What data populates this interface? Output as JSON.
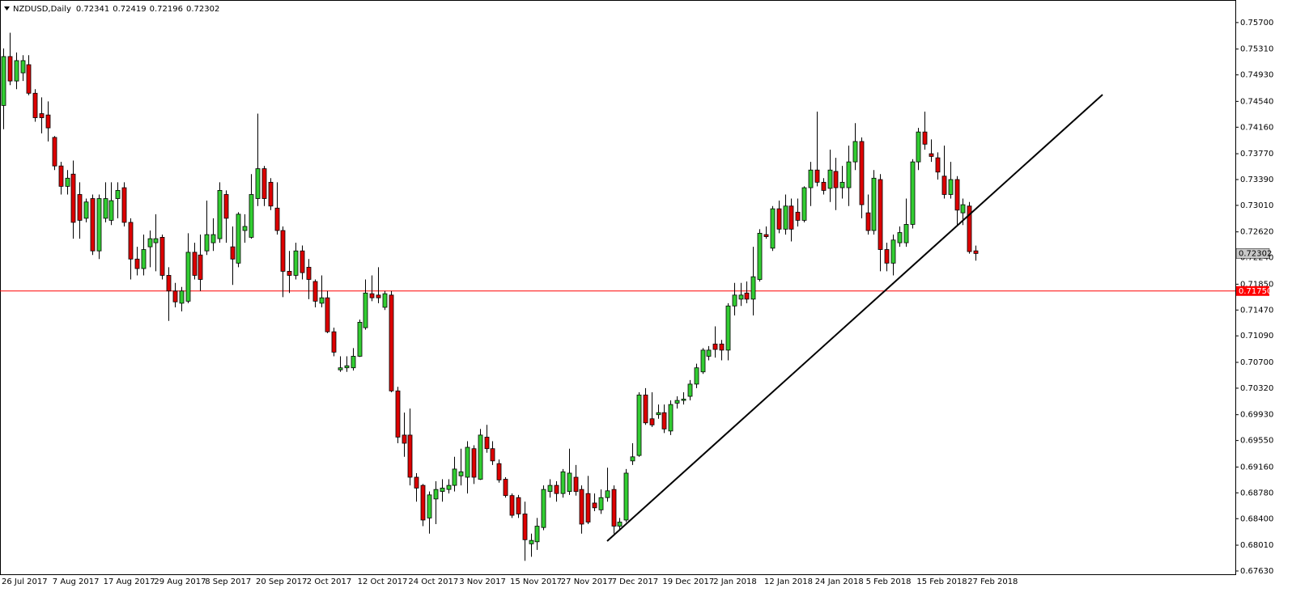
{
  "chart_data": {
    "type": "candlestick",
    "title": "NZDUSD,Daily",
    "up_color": "#32cd32",
    "down_color": "#dd0000",
    "categories": [
      "26 Jul 2017",
      null,
      null,
      null,
      null,
      null,
      null,
      null,
      "7 Aug 2017",
      null,
      null,
      null,
      null,
      null,
      null,
      null,
      "17 Aug 2017",
      null,
      null,
      null,
      null,
      null,
      null,
      null,
      "29 Aug 2017",
      null,
      null,
      null,
      null,
      null,
      null,
      null,
      "8 Sep 2017",
      null,
      null,
      null,
      null,
      null,
      null,
      null,
      "20 Sep 2017",
      null,
      null,
      null,
      null,
      null,
      null,
      null,
      "2 Oct 2017",
      null,
      null,
      null,
      null,
      null,
      null,
      null,
      "12 Oct 2017",
      null,
      null,
      null,
      null,
      null,
      null,
      null,
      "24 Oct 2017",
      null,
      null,
      null,
      null,
      null,
      null,
      null,
      "3 Nov 2017",
      null,
      null,
      null,
      null,
      null,
      null,
      null,
      "15 Nov 2017",
      null,
      null,
      null,
      null,
      null,
      null,
      null,
      "27 Nov 2017",
      null,
      null,
      null,
      null,
      null,
      null,
      null,
      "7 Dec 2017",
      null,
      null,
      null,
      null,
      null,
      null,
      null,
      "19 Dec 2017",
      null,
      null,
      null,
      null,
      null,
      null,
      null,
      "2 Jan 2018",
      null,
      null,
      null,
      null,
      null,
      null,
      null,
      "12 Jan 2018",
      null,
      null,
      null,
      null,
      null,
      null,
      null,
      "24 Jan 2018",
      null,
      null,
      null,
      null,
      null,
      null,
      null,
      "5 Feb 2018",
      null,
      null,
      null,
      null,
      null,
      null,
      null,
      "15 Feb 2018",
      null,
      null,
      null,
      null,
      null,
      null,
      null,
      "27 Feb 2018",
      null
    ],
    "open": [
      0.7448,
      0.752,
      0.7484,
      0.7496,
      0.7508,
      0.7466,
      0.7436,
      0.7434,
      0.7401,
      0.7359,
      0.7329,
      0.7347,
      0.7317,
      0.7282,
      0.7311,
      0.7234,
      0.7282,
      0.7279,
      0.7311,
      0.7327,
      0.7276,
      0.7222,
      0.7208,
      0.724,
      0.7246,
      0.7254,
      0.7198,
      0.7175,
      0.7157,
      0.716,
      0.7232,
      0.7228,
      0.7234,
      0.7246,
      0.7252,
      0.7317,
      0.724,
      0.7216,
      0.7264,
      0.7254,
      0.7311,
      0.7355,
      0.7335,
      0.7297,
      0.7264,
      0.7204,
      0.7198,
      0.7234,
      0.721,
      0.7189,
      0.7157,
      0.7165,
      0.7115,
      0.7059,
      0.7062,
      0.7062,
      0.7079,
      0.7121,
      0.7171,
      0.7169,
      0.7151,
      0.7169,
      0.7028,
      0.6963,
      0.6963,
      0.6901,
      0.6889,
      0.6841,
      0.6869,
      0.688,
      0.6883,
      0.6889,
      0.6903,
      0.6901,
      0.6943,
      0.6898,
      0.696,
      0.6943,
      0.6921,
      0.6898,
      0.6874,
      0.6871,
      0.6847,
      0.6803,
      0.6806,
      0.6827,
      0.688,
      0.6889,
      0.6877,
      0.688,
      0.6901,
      0.6883,
      0.6877,
      0.6863,
      0.6853,
      0.6871,
      0.6883,
      0.6829,
      0.6838,
      0.6925,
      0.6933,
      0.7022,
      0.6987,
      0.6993,
      0.6996,
      0.6969,
      0.701,
      0.7014,
      0.702,
      0.7038,
      0.7056,
      0.7079,
      0.7097,
      0.7097,
      0.7088,
      0.7153,
      0.7163,
      0.7172,
      0.7163,
      0.7192,
      0.7258,
      0.7238,
      0.7296,
      0.7266,
      0.73,
      0.7291,
      0.7279,
      0.7327,
      0.7353,
      0.7335,
      0.7326,
      0.7351,
      0.7327,
      0.7327,
      0.7365,
      0.7395,
      0.729,
      0.7264,
      0.7339,
      0.7236,
      0.7216,
      0.7246,
      0.7246,
      0.7273,
      0.7365,
      0.7409,
      0.7377,
      0.7371,
      0.7344,
      0.7317,
      0.7339,
      0.729,
      0.73,
      0.72341
    ],
    "high": [
      0.7532,
      0.7555,
      0.7526,
      0.7522,
      0.7522,
      0.7472,
      0.746,
      0.7454,
      0.7403,
      0.7365,
      0.7353,
      0.7367,
      0.7335,
      0.7311,
      0.7317,
      0.7317,
      0.7335,
      0.7335,
      0.7335,
      0.7335,
      0.7282,
      0.724,
      0.7258,
      0.7264,
      0.7288,
      0.7258,
      0.721,
      0.7187,
      0.7181,
      0.726,
      0.7246,
      0.7258,
      0.7308,
      0.7282,
      0.7335,
      0.7323,
      0.727,
      0.7291,
      0.7288,
      0.7347,
      0.7436,
      0.7359,
      0.7341,
      0.7335,
      0.727,
      0.7234,
      0.7246,
      0.7242,
      0.7222,
      0.7192,
      0.7198,
      0.7175,
      0.7121,
      0.7079,
      0.7079,
      0.7091,
      0.7133,
      0.7192,
      0.7198,
      0.721,
      0.7175,
      0.7175,
      0.7034,
      0.6996,
      0.7002,
      0.6907,
      0.6891,
      0.688,
      0.6895,
      0.6898,
      0.6898,
      0.6931,
      0.6943,
      0.6954,
      0.6948,
      0.6972,
      0.6978,
      0.6954,
      0.6927,
      0.6901,
      0.6877,
      0.6875,
      0.6865,
      0.6818,
      0.6841,
      0.6889,
      0.6898,
      0.6895,
      0.6913,
      0.6943,
      0.6919,
      0.6889,
      0.6903,
      0.6877,
      0.6883,
      0.6915,
      0.6889,
      0.6841,
      0.6913,
      0.6951,
      0.7026,
      0.7032,
      0.7026,
      0.7008,
      0.7008,
      0.7014,
      0.702,
      0.7026,
      0.7044,
      0.7068,
      0.7091,
      0.7094,
      0.7123,
      0.7103,
      0.7157,
      0.7187,
      0.7187,
      0.7189,
      0.724,
      0.7266,
      0.727,
      0.73,
      0.7308,
      0.7317,
      0.7311,
      0.7311,
      0.7329,
      0.7365,
      0.7439,
      0.7341,
      0.7383,
      0.7371,
      0.7359,
      0.7389,
      0.7422,
      0.7401,
      0.7317,
      0.7353,
      0.7347,
      0.7246,
      0.7258,
      0.727,
      0.7311,
      0.7369,
      0.7415,
      0.7439,
      0.7398,
      0.7379,
      0.7389,
      0.7365,
      0.7344,
      0.7311,
      0.7306,
      0.72419
    ],
    "low": [
      0.7413,
      0.7478,
      0.7472,
      0.7484,
      0.7463,
      0.7424,
      0.7407,
      0.7395,
      0.7353,
      0.7317,
      0.7317,
      0.7252,
      0.7252,
      0.7276,
      0.7228,
      0.7222,
      0.7276,
      0.7272,
      0.7282,
      0.727,
      0.7192,
      0.7198,
      0.7198,
      0.721,
      0.7204,
      0.7192,
      0.7131,
      0.7151,
      0.7145,
      0.7157,
      0.7192,
      0.7175,
      0.7228,
      0.7234,
      0.7246,
      0.7246,
      0.7184,
      0.721,
      0.7246,
      0.7252,
      0.73,
      0.73,
      0.7294,
      0.7258,
      0.7166,
      0.7172,
      0.7192,
      0.7192,
      0.7163,
      0.7151,
      0.7151,
      0.7113,
      0.7079,
      0.7056,
      0.7056,
      0.7058,
      0.7078,
      0.7118,
      0.716,
      0.7157,
      0.7147,
      0.7026,
      0.6951,
      0.6931,
      0.6889,
      0.6865,
      0.6829,
      0.6818,
      0.6832,
      0.6865,
      0.6877,
      0.688,
      0.6889,
      0.6877,
      0.6891,
      0.6897,
      0.6937,
      0.6919,
      0.6893,
      0.6871,
      0.6841,
      0.6841,
      0.6778,
      0.6784,
      0.6794,
      0.6823,
      0.6871,
      0.6865,
      0.6871,
      0.6875,
      0.6874,
      0.6818,
      0.6832,
      0.6851,
      0.6847,
      0.6865,
      0.6818,
      0.6823,
      0.6835,
      0.6919,
      0.6931,
      0.6978,
      0.6975,
      0.6987,
      0.6966,
      0.6963,
      0.7002,
      0.7008,
      0.7014,
      0.7032,
      0.7053,
      0.7073,
      0.7077,
      0.7073,
      0.7073,
      0.7139,
      0.7153,
      0.7157,
      0.7139,
      0.7189,
      0.7252,
      0.7234,
      0.726,
      0.7258,
      0.7248,
      0.727,
      0.7276,
      0.73,
      0.7329,
      0.7317,
      0.7306,
      0.7294,
      0.7311,
      0.73,
      0.7353,
      0.7282,
      0.7258,
      0.7258,
      0.7204,
      0.7204,
      0.7198,
      0.724,
      0.724,
      0.7267,
      0.7353,
      0.7383,
      0.7365,
      0.7339,
      0.7311,
      0.7311,
      0.727,
      0.7272,
      0.723,
      0.72196
    ],
    "close": [
      0.752,
      0.7484,
      0.7514,
      0.7514,
      0.7466,
      0.743,
      0.743,
      0.7415,
      0.7359,
      0.7329,
      0.7341,
      0.7276,
      0.7279,
      0.7306,
      0.7234,
      0.7311,
      0.7311,
      0.7308,
      0.7323,
      0.7276,
      0.7222,
      0.7208,
      0.7236,
      0.7252,
      0.7252,
      0.7198,
      0.7175,
      0.7159,
      0.7175,
      0.7232,
      0.7198,
      0.7192,
      0.7258,
      0.7258,
      0.7323,
      0.7282,
      0.7222,
      0.7288,
      0.727,
      0.7317,
      0.7355,
      0.7311,
      0.73,
      0.7264,
      0.7204,
      0.7198,
      0.7234,
      0.7202,
      0.7192,
      0.716,
      0.7165,
      0.7115,
      0.7085,
      0.7062,
      0.7065,
      0.7079,
      0.7129,
      0.7172,
      0.7165,
      0.7165,
      0.7171,
      0.7028,
      0.696,
      0.6951,
      0.6901,
      0.6885,
      0.6838,
      0.6875,
      0.6883,
      0.6885,
      0.6889,
      0.6913,
      0.6909,
      0.6945,
      0.6901,
      0.6963,
      0.6943,
      0.6925,
      0.6897,
      0.6874,
      0.6845,
      0.6847,
      0.6809,
      0.6808,
      0.6829,
      0.6883,
      0.6889,
      0.6877,
      0.6909,
      0.6907,
      0.688,
      0.6832,
      0.6835,
      0.6856,
      0.6871,
      0.6881,
      0.6829,
      0.6835,
      0.6907,
      0.6931,
      0.7022,
      0.6981,
      0.6978,
      0.6996,
      0.6972,
      0.7008,
      0.7014,
      0.7016,
      0.7038,
      0.7062,
      0.7088,
      0.7088,
      0.7089,
      0.7088,
      0.7153,
      0.7169,
      0.7169,
      0.7163,
      0.7196,
      0.726,
      0.7255,
      0.7296,
      0.7266,
      0.73,
      0.7266,
      0.7279,
      0.7327,
      0.7353,
      0.7335,
      0.7323,
      0.7353,
      0.7327,
      0.7335,
      0.7365,
      0.7395,
      0.7302,
      0.7264,
      0.7341,
      0.7236,
      0.7216,
      0.725,
      0.7261,
      0.7273,
      0.7365,
      0.7409,
      0.7391,
      0.7373,
      0.735,
      0.7317,
      0.7339,
      0.7294,
      0.7302,
      0.7233,
      0.72302
    ],
    "ylim": [
      0.6757,
      0.7602
    ],
    "yticks": [
      {
        "value": 0.757,
        "label": "0.75700"
      },
      {
        "value": 0.7531,
        "label": "0.75310"
      },
      {
        "value": 0.7493,
        "label": "0.74930"
      },
      {
        "value": 0.7454,
        "label": "0.74540"
      },
      {
        "value": 0.7416,
        "label": "0.74160"
      },
      {
        "value": 0.7377,
        "label": "0.73770"
      },
      {
        "value": 0.7339,
        "label": "0.73390"
      },
      {
        "value": 0.7301,
        "label": "0.73010"
      },
      {
        "value": 0.7262,
        "label": "0.72620"
      },
      {
        "value": 0.7224,
        "label": "0.72240"
      },
      {
        "value": 0.7185,
        "label": "0.71850"
      },
      {
        "value": 0.7147,
        "label": "0.71470"
      },
      {
        "value": 0.7109,
        "label": "0.71090"
      },
      {
        "value": 0.707,
        "label": "0.70700"
      },
      {
        "value": 0.7032,
        "label": "0.70320"
      },
      {
        "value": 0.6993,
        "label": "0.69930"
      },
      {
        "value": 0.6955,
        "label": "0.69550"
      },
      {
        "value": 0.6916,
        "label": "0.69160"
      },
      {
        "value": 0.6878,
        "label": "0.68780"
      },
      {
        "value": 0.684,
        "label": "0.68400"
      },
      {
        "value": 0.6801,
        "label": "0.68010"
      },
      {
        "value": 0.6763,
        "label": "0.67630"
      }
    ],
    "hline": {
      "value": 0.7175,
      "label": "0.71750",
      "color": "#ff0000"
    },
    "grid": false
  }
}
